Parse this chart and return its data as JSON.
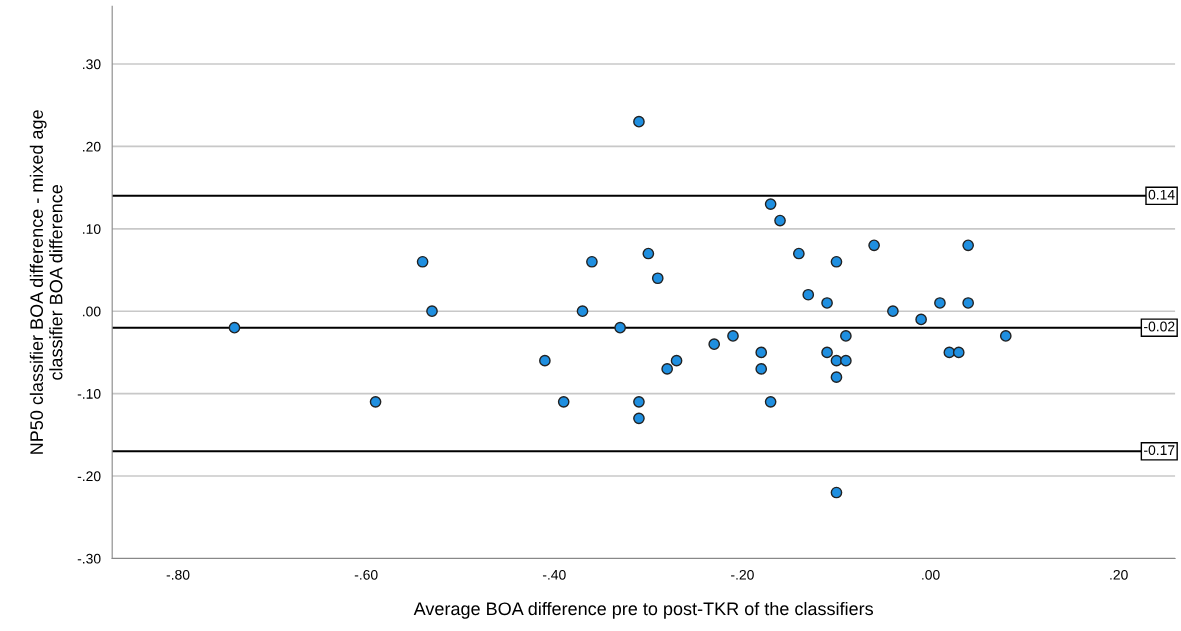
{
  "chart_data": {
    "type": "scatter",
    "xlabel": "Average BOA difference pre to post-TKR of the classifiers",
    "ylabel": "NP50 classifier BOA difference - mixed age\nclassifier BOA difference",
    "x": [
      -0.74,
      -0.59,
      -0.54,
      -0.53,
      -0.41,
      -0.39,
      -0.37,
      -0.36,
      -0.33,
      -0.31,
      -0.31,
      -0.31,
      -0.3,
      -0.29,
      -0.28,
      -0.27,
      -0.23,
      -0.21,
      -0.18,
      -0.18,
      -0.17,
      -0.17,
      -0.16,
      -0.14,
      -0.13,
      -0.11,
      -0.11,
      -0.1,
      -0.1,
      -0.1,
      -0.1,
      -0.09,
      -0.09,
      -0.06,
      -0.04,
      -0.01,
      0.01,
      0.02,
      0.03,
      0.04,
      0.04,
      0.08
    ],
    "values": [
      -0.02,
      -0.11,
      0.06,
      0.0,
      -0.06,
      -0.11,
      0.0,
      0.06,
      -0.02,
      0.23,
      -0.11,
      -0.13,
      0.07,
      0.04,
      -0.07,
      -0.06,
      -0.04,
      -0.03,
      -0.05,
      -0.07,
      0.13,
      -0.11,
      0.11,
      0.07,
      0.02,
      0.01,
      -0.05,
      0.06,
      -0.06,
      -0.08,
      -0.22,
      -0.03,
      -0.06,
      0.08,
      0.0,
      -0.01,
      0.01,
      -0.05,
      -0.05,
      0.08,
      0.01,
      -0.03
    ],
    "color": "#1f8fe0",
    "marker": "circle",
    "xlim": [
      -0.87,
      0.26
    ],
    "ylim": [
      -0.3,
      0.37
    ],
    "xticks": [
      {
        "value": -0.8,
        "label": "-.80"
      },
      {
        "value": -0.6,
        "label": "-.60"
      },
      {
        "value": -0.4,
        "label": "-.40"
      },
      {
        "value": -0.2,
        "label": "-.20"
      },
      {
        "value": 0,
        "label": ".00"
      },
      {
        "value": 0.2,
        "label": ".20"
      }
    ],
    "yticks": [
      {
        "value": -0.3,
        "label": "-.30"
      },
      {
        "value": -0.2,
        "label": "-.20"
      },
      {
        "value": -0.1,
        "label": "-.10"
      },
      {
        "value": 0,
        "label": ".00"
      },
      {
        "value": 0.1,
        "label": ".10"
      },
      {
        "value": 0.2,
        "label": ".20"
      },
      {
        "value": 0.3,
        "label": ".30"
      }
    ],
    "grid": "y",
    "ref_lines": [
      {
        "axis": "y",
        "value": 0.14,
        "label": "0.14",
        "color": "#000000"
      },
      {
        "axis": "y",
        "value": -0.02,
        "label": "-0.02",
        "color": "#000000"
      },
      {
        "axis": "y",
        "value": -0.17,
        "label": "-0.17",
        "color": "#000000"
      }
    ]
  }
}
